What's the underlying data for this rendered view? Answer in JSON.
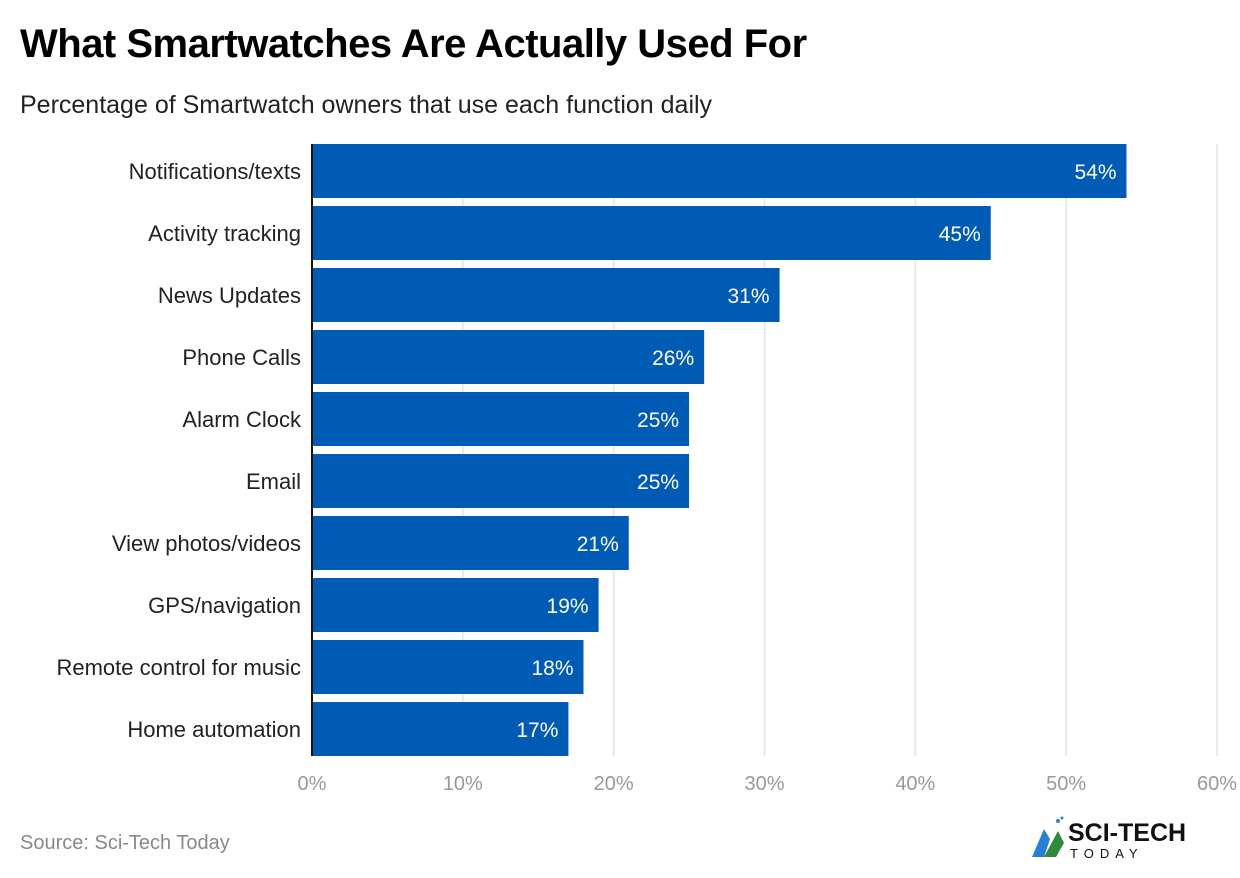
{
  "chart_data": {
    "type": "bar",
    "orientation": "horizontal",
    "title": "What Smartwatches Are Actually Used For",
    "subtitle": "Percentage of Smartwatch owners that use each function daily",
    "categories": [
      "Notifications/texts",
      "Activity tracking",
      "News Updates",
      "Phone Calls",
      "Alarm Clock",
      "Email",
      "View photos/videos",
      "GPS/navigation",
      "Remote control for music",
      "Home automation"
    ],
    "values": [
      54,
      45,
      31,
      26,
      25,
      25,
      21,
      19,
      18,
      17
    ],
    "data_labels": [
      "54%",
      "45%",
      "31%",
      "26%",
      "25%",
      "25%",
      "21%",
      "19%",
      "18%",
      "17%"
    ],
    "xlim": [
      0,
      60
    ],
    "x_ticks": [
      "0%",
      "10%",
      "20%",
      "30%",
      "40%",
      "50%",
      "60%"
    ],
    "grid": true,
    "bar_color": "#005bb5"
  },
  "footer": {
    "source": "Source: Sci-Tech Today",
    "logo_text": "SCI-TECH TODAY"
  }
}
